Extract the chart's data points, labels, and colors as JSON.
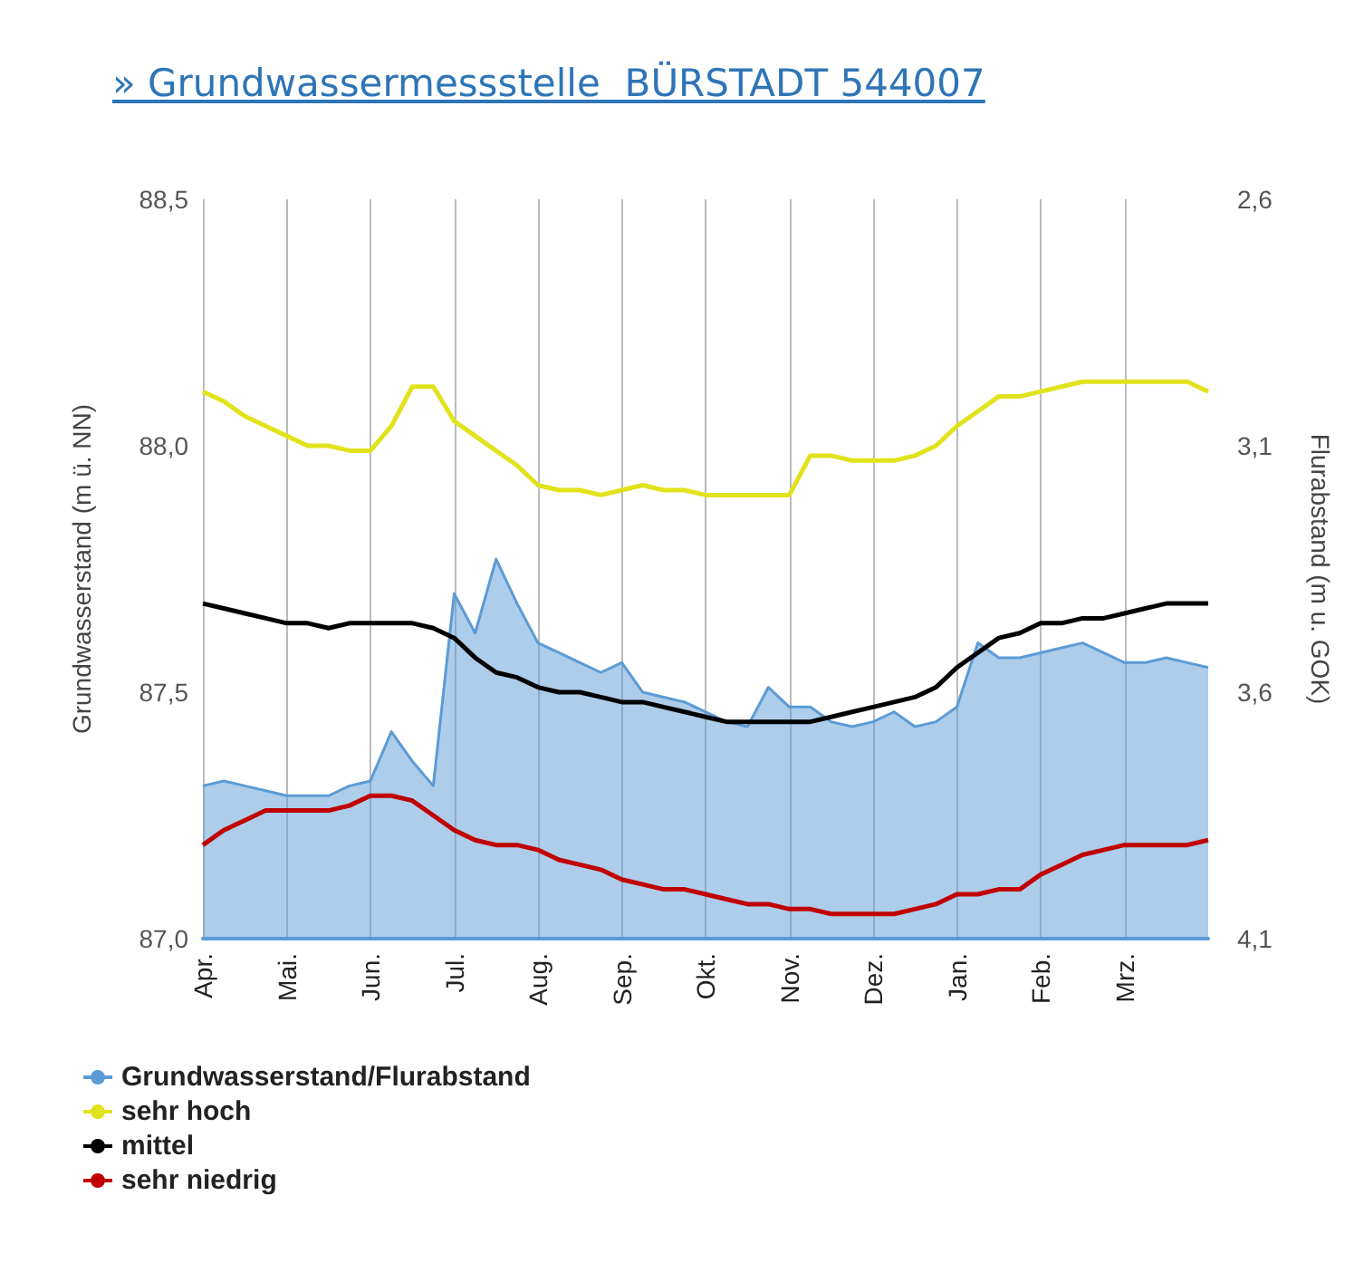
{
  "chart_data": {
    "type": "line",
    "title": "» Grundwassermessstelle  BÜRSTADT 544007",
    "ylabel": "Grundwasserstand (m ü. NN)",
    "y2label": "Flurabstand (m u. GOK)",
    "categories": [
      "Apr.",
      null,
      null,
      null,
      "Mai.",
      null,
      null,
      null,
      "Jun.",
      null,
      null,
      null,
      "Jul.",
      null,
      null,
      null,
      "Aug.",
      null,
      null,
      null,
      "Sep.",
      null,
      null,
      null,
      "Okt.",
      null,
      null,
      null,
      "Nov.",
      null,
      null,
      null,
      "Dez.",
      null,
      null,
      null,
      "Jan.",
      null,
      null,
      null,
      "Feb.",
      null,
      null,
      null,
      "Mrz.",
      null,
      null,
      null,
      null
    ],
    "ylim": [
      87.0,
      88.5
    ],
    "yticks": [
      {
        "value": 87.0,
        "label": "87,0"
      },
      {
        "value": 87.5,
        "label": "87,5"
      },
      {
        "value": 88.0,
        "label": "88,0"
      },
      {
        "value": 88.5,
        "label": "88,5"
      }
    ],
    "y2lim": [
      4.1,
      2.6
    ],
    "y2ticks": [
      {
        "value": 2.6,
        "label": "2,6"
      },
      {
        "value": 3.1,
        "label": "3,1"
      },
      {
        "value": 3.6,
        "label": "3,6"
      },
      {
        "value": 4.1,
        "label": "4,1"
      }
    ],
    "grid": "x",
    "legend": "bottom left",
    "line_style": "solid",
    "marker": "none",
    "series": [
      {
        "name": "Grundwasserstand/Flurabstand",
        "type": "area",
        "color": "#5b9bd5",
        "values": [
          87.31,
          87.32,
          87.31,
          87.3,
          87.29,
          87.29,
          87.29,
          87.31,
          87.32,
          87.42,
          87.36,
          87.31,
          87.7,
          87.62,
          87.77,
          87.68,
          87.6,
          87.58,
          87.56,
          87.54,
          87.56,
          87.5,
          87.49,
          87.48,
          87.46,
          87.44,
          87.43,
          87.51,
          87.47,
          87.47,
          87.44,
          87.43,
          87.44,
          87.46,
          87.43,
          87.44,
          87.47,
          87.6,
          87.57,
          87.57,
          87.58,
          87.59,
          87.6,
          87.58,
          87.56,
          87.56,
          87.57,
          87.56,
          87.55
        ]
      },
      {
        "name": "sehr hoch",
        "color": "#e2e21c",
        "values": [
          88.11,
          88.09,
          88.06,
          88.04,
          88.02,
          88.0,
          88.0,
          87.99,
          87.99,
          88.04,
          88.12,
          88.12,
          88.05,
          88.02,
          87.99,
          87.96,
          87.92,
          87.91,
          87.91,
          87.9,
          87.91,
          87.92,
          87.91,
          87.91,
          87.9,
          87.9,
          87.9,
          87.9,
          87.9,
          87.98,
          87.98,
          87.97,
          87.97,
          87.97,
          87.98,
          88.0,
          88.04,
          88.07,
          88.1,
          88.1,
          88.11,
          88.12,
          88.13,
          88.13,
          88.13,
          88.13,
          88.13,
          88.13,
          88.11
        ]
      },
      {
        "name": "mittel",
        "color": "#000000",
        "values": [
          87.68,
          87.67,
          87.66,
          87.65,
          87.64,
          87.64,
          87.63,
          87.64,
          87.64,
          87.64,
          87.64,
          87.63,
          87.61,
          87.57,
          87.54,
          87.53,
          87.51,
          87.5,
          87.5,
          87.49,
          87.48,
          87.48,
          87.47,
          87.46,
          87.45,
          87.44,
          87.44,
          87.44,
          87.44,
          87.44,
          87.45,
          87.46,
          87.47,
          87.48,
          87.49,
          87.51,
          87.55,
          87.58,
          87.61,
          87.62,
          87.64,
          87.64,
          87.65,
          87.65,
          87.66,
          87.67,
          87.68,
          87.68,
          87.68
        ]
      },
      {
        "name": "sehr niedrig",
        "color": "#c00000",
        "values": [
          87.19,
          87.22,
          87.24,
          87.26,
          87.26,
          87.26,
          87.26,
          87.27,
          87.29,
          87.29,
          87.28,
          87.25,
          87.22,
          87.2,
          87.19,
          87.19,
          87.18,
          87.16,
          87.15,
          87.14,
          87.12,
          87.11,
          87.1,
          87.1,
          87.09,
          87.08,
          87.07,
          87.07,
          87.06,
          87.06,
          87.05,
          87.05,
          87.05,
          87.05,
          87.06,
          87.07,
          87.09,
          87.09,
          87.1,
          87.1,
          87.13,
          87.15,
          87.17,
          87.18,
          87.19,
          87.19,
          87.19,
          87.19,
          87.2
        ]
      }
    ]
  }
}
